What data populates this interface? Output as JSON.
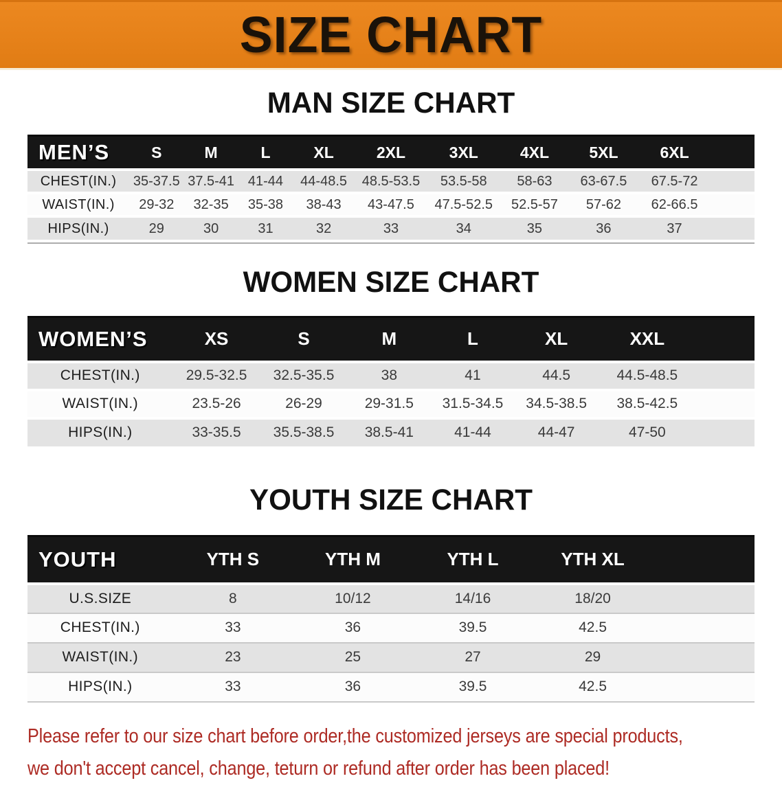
{
  "banner": {
    "title": "SIZE CHART",
    "bg_color": "#E8831E",
    "title_color": "#1A1209"
  },
  "colors": {
    "banner_orange": "#E8831E",
    "table_header_black": "#161616",
    "row_gray": "#E3E3E3",
    "row_white": "#FCFCFC",
    "notice_red": "#AD2B24"
  },
  "sections": {
    "men": {
      "heading": "MAN SIZE CHART",
      "table": {
        "corner": "MEN’S",
        "columns": [
          "S",
          "M",
          "L",
          "XL",
          "2XL",
          "3XL",
          "4XL",
          "5XL",
          "6XL"
        ],
        "rows": [
          {
            "label": "CHEST(IN.)",
            "values": [
              "35-37.5",
              "37.5-41",
              "41-44",
              "44-48.5",
              "48.5-53.5",
              "53.5-58",
              "58-63",
              "63-67.5",
              "67.5-72"
            ]
          },
          {
            "label": "WAIST(IN.)",
            "values": [
              "29-32",
              "32-35",
              "35-38",
              "38-43",
              "43-47.5",
              "47.5-52.5",
              "52.5-57",
              "57-62",
              "62-66.5"
            ]
          },
          {
            "label": "HIPS(IN.)",
            "values": [
              "29",
              "30",
              "31",
              "32",
              "33",
              "34",
              "35",
              "36",
              "37"
            ]
          }
        ]
      }
    },
    "women": {
      "heading": "WOMEN SIZE CHART",
      "table": {
        "corner": "WOMEN’S",
        "columns": [
          "XS",
          "S",
          "M",
          "L",
          "XL",
          "XXL"
        ],
        "rows": [
          {
            "label": "CHEST(IN.)",
            "values": [
              "29.5-32.5",
              "32.5-35.5",
              "38",
              "41",
              "44.5",
              "44.5-48.5"
            ]
          },
          {
            "label": "WAIST(IN.)",
            "values": [
              "23.5-26",
              "26-29",
              "29-31.5",
              "31.5-34.5",
              "34.5-38.5",
              "38.5-42.5"
            ]
          },
          {
            "label": "HIPS(IN.)",
            "values": [
              "33-35.5",
              "35.5-38.5",
              "38.5-41",
              "41-44",
              "44-47",
              "47-50"
            ]
          }
        ]
      }
    },
    "youth": {
      "heading": "YOUTH SIZE CHART",
      "table": {
        "corner": "YOUTH",
        "columns": [
          "YTH S",
          "YTH M",
          "YTH L",
          "YTH XL"
        ],
        "rows": [
          {
            "label": "U.S.SIZE",
            "values": [
              "8",
              "10/12",
              "14/16",
              "18/20"
            ]
          },
          {
            "label": "CHEST(IN.)",
            "values": [
              "33",
              "36",
              "39.5",
              "42.5"
            ]
          },
          {
            "label": "WAIST(IN.)",
            "values": [
              "23",
              "25",
              "27",
              "29"
            ]
          },
          {
            "label": "HIPS(IN.)",
            "values": [
              "33",
              "36",
              "39.5",
              "42.5"
            ]
          }
        ]
      }
    }
  },
  "notice": {
    "line1": "Please refer to our size chart before order,the customized jerseys are special products,",
    "line2": "we don't accept cancel, change, teturn or refund after order has been placed!"
  }
}
